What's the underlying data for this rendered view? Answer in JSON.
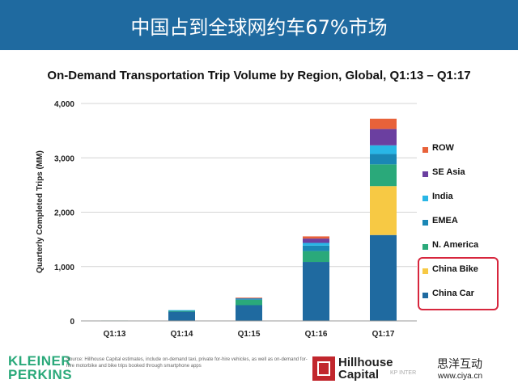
{
  "banner": {
    "title": "中国占到全球网约车67%市场"
  },
  "chart_data": {
    "type": "bar",
    "stacked": true,
    "title": "On-Demand Transportation Trip Volume by Region, Global, Q1:13 – Q1:17",
    "xlabel": "",
    "ylabel": "Quarterly Completed Trips (MM)",
    "ylim": [
      0,
      4000
    ],
    "yticks": [
      0,
      1000,
      2000,
      3000,
      4000
    ],
    "ytick_labels": [
      "0",
      "1,000",
      "2,000",
      "3,000",
      "4,000"
    ],
    "grid": true,
    "legend_position": "right",
    "categories": [
      "Q1:13",
      "Q1:14",
      "Q1:15",
      "Q1:16",
      "Q1:17"
    ],
    "series": [
      {
        "name": "China Car",
        "color": "#1f6aa0",
        "values": [
          5,
          170,
          290,
          1085,
          1580
        ]
      },
      {
        "name": "China Bike",
        "color": "#f7c944",
        "values": [
          0,
          0,
          0,
          0,
          900
        ]
      },
      {
        "name": "N. America",
        "color": "#2aa97a",
        "values": [
          3,
          20,
          100,
          200,
          400
        ]
      },
      {
        "name": "EMEA",
        "color": "#1a87b5",
        "values": [
          0,
          5,
          20,
          100,
          190
        ]
      },
      {
        "name": "India",
        "color": "#29b6e6",
        "values": [
          0,
          2,
          10,
          50,
          160
        ]
      },
      {
        "name": "SE Asia",
        "color": "#6b3fa0",
        "values": [
          0,
          0,
          5,
          80,
          300
        ]
      },
      {
        "name": "ROW",
        "color": "#e8623a",
        "values": [
          0,
          0,
          2,
          40,
          190
        ]
      }
    ],
    "legend_order": [
      "ROW",
      "SE Asia",
      "India",
      "EMEA",
      "N. America",
      "China Bike",
      "China Car"
    ],
    "highlighted_legend": [
      "China Bike",
      "China Car"
    ]
  },
  "footer": {
    "logo_line1": "KLEINER",
    "logo_line2": "PERKINS",
    "source": "Source: Hillhouse Capital estimates, include on-demand taxi, private for-hire vehicles, as well as on-demand for-hire motorbike and bike trips booked through smartphone apps",
    "hillhouse_line1": "Hillhouse",
    "hillhouse_line2": "Capital",
    "kp_tag": "KP INTER",
    "watermark_cn": "思洋互动",
    "watermark_url": "www.ciya.cn",
    "accent_red": "#c1272d"
  }
}
